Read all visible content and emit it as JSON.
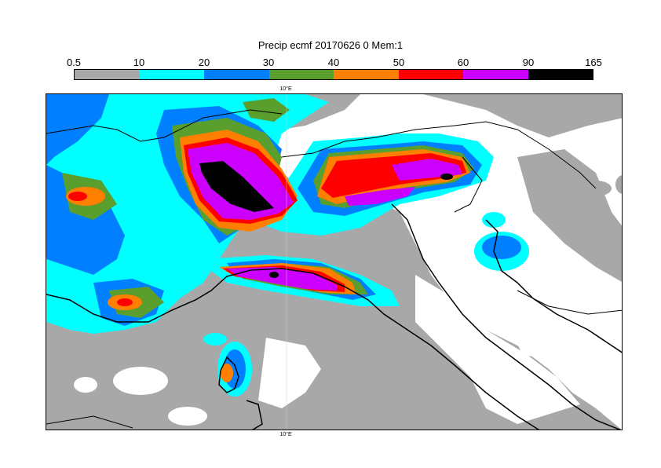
{
  "title": "Precip ecmf 20170626 0 Mem:1",
  "legend": {
    "thresholds": [
      "0.5",
      "10",
      "20",
      "30",
      "40",
      "50",
      "60",
      "90",
      "165"
    ],
    "colors": [
      "#a8a8a8",
      "#00ffff",
      "#0080ff",
      "#5a9e2d",
      "#ff8000",
      "#ff0000",
      "#cc00ff",
      "#000000"
    ]
  },
  "axes": {
    "lon_label_top": "10°E",
    "lon_label_bottom": "10°E"
  }
}
